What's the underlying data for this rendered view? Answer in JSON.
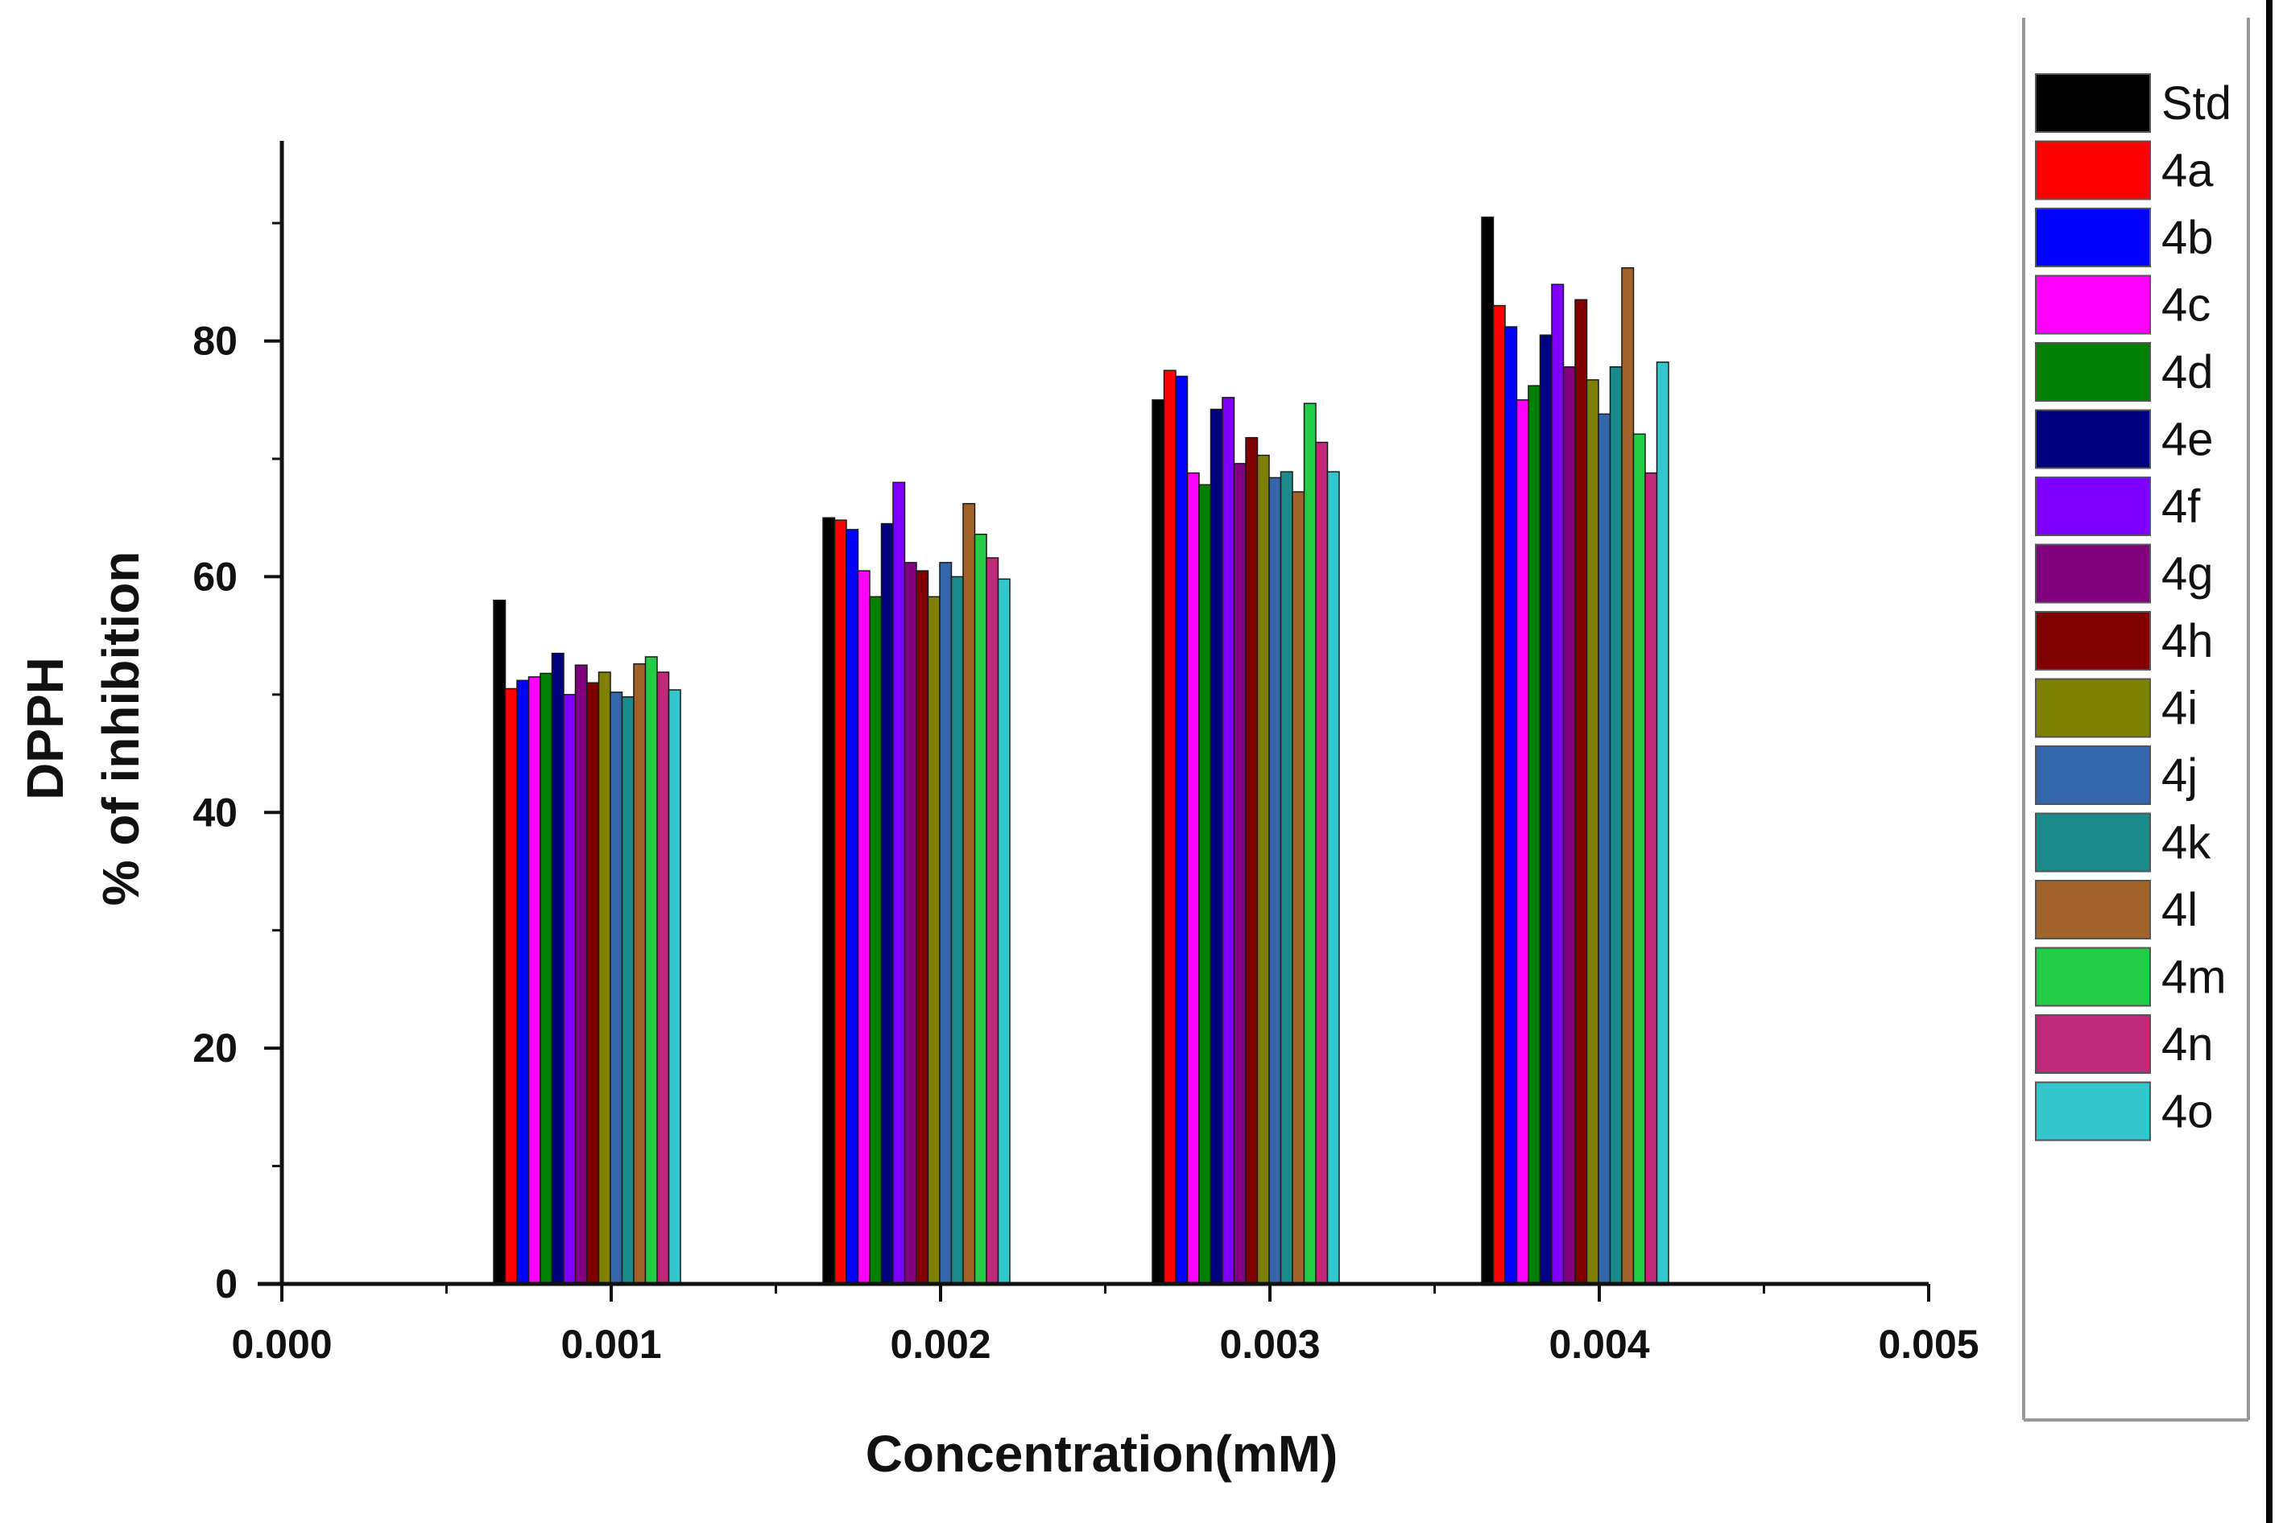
{
  "chart_data": {
    "type": "bar",
    "title": "",
    "xlabel": "Concentration(mM)",
    "ylabel_line1": "DPPH",
    "ylabel_line2": "% of inhibition",
    "xlim": [
      0.0,
      0.005
    ],
    "ylim": [
      0,
      98
    ],
    "x_ticks": [
      "0.000",
      "0.001",
      "0.002",
      "0.003",
      "0.004",
      "0.005"
    ],
    "y_ticks": [
      "0",
      "20",
      "40",
      "60",
      "80"
    ],
    "categories": [
      "0.001",
      "0.002",
      "0.003",
      "0.004"
    ],
    "x": [
      0.001,
      0.002,
      0.003,
      0.004
    ],
    "legend_position": "right",
    "series": [
      {
        "name": "Std",
        "color": "#000000",
        "values": [
          58.0,
          65.0,
          75.0,
          90.5
        ]
      },
      {
        "name": "4a",
        "color": "#ff0000",
        "values": [
          50.5,
          64.8,
          77.5,
          83.0
        ]
      },
      {
        "name": "4b",
        "color": "#0000ff",
        "values": [
          51.2,
          64.0,
          77.0,
          81.2
        ]
      },
      {
        "name": "4c",
        "color": "#ff00ff",
        "values": [
          51.5,
          60.5,
          68.8,
          75.0
        ]
      },
      {
        "name": "4d",
        "color": "#008000",
        "values": [
          51.8,
          58.3,
          67.8,
          76.2
        ]
      },
      {
        "name": "4e",
        "color": "#000080",
        "values": [
          53.5,
          64.5,
          74.2,
          80.5
        ]
      },
      {
        "name": "4f",
        "color": "#8000ff",
        "values": [
          50.0,
          68.0,
          75.2,
          84.8
        ]
      },
      {
        "name": "4g",
        "color": "#800080",
        "values": [
          52.5,
          61.2,
          69.6,
          77.8
        ]
      },
      {
        "name": "4h",
        "color": "#800000",
        "values": [
          51.0,
          60.5,
          71.8,
          83.5
        ]
      },
      {
        "name": "4i",
        "color": "#808000",
        "values": [
          51.9,
          58.3,
          70.3,
          76.7
        ]
      },
      {
        "name": "4j",
        "color": "#3366aa",
        "values": [
          50.2,
          61.2,
          68.4,
          73.8
        ]
      },
      {
        "name": "4k",
        "color": "#1a8a8a",
        "values": [
          49.8,
          60.0,
          68.9,
          77.8
        ]
      },
      {
        "name": "4l",
        "color": "#a0642a",
        "values": [
          52.6,
          66.2,
          67.2,
          86.2
        ]
      },
      {
        "name": "4m",
        "color": "#22cc44",
        "values": [
          53.2,
          63.6,
          74.7,
          72.1
        ]
      },
      {
        "name": "4n",
        "color": "#c0287a",
        "values": [
          51.9,
          61.6,
          71.4,
          68.8
        ]
      },
      {
        "name": "4o",
        "color": "#33c6cc",
        "values": [
          50.4,
          59.8,
          68.9,
          78.2
        ]
      }
    ]
  }
}
